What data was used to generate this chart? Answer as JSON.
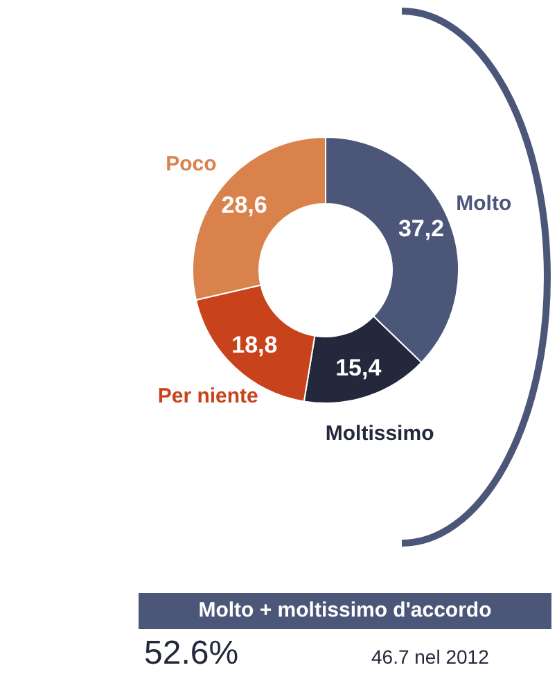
{
  "chart_data": {
    "type": "donut",
    "categories": [
      "Molto",
      "Moltissimo",
      "Per niente",
      "Poco"
    ],
    "values": [
      37.2,
      15.4,
      18.8,
      28.6
    ],
    "colors": [
      "#4b5678",
      "#23283c",
      "#c8431c",
      "#d9824c"
    ],
    "value_labels": [
      "37,2",
      "15,4",
      "18,8",
      "28,6"
    ],
    "annotations": [
      "Molto + moltissimo d'accordo",
      "52.6%",
      "46.7 nel 2012"
    ]
  }
}
